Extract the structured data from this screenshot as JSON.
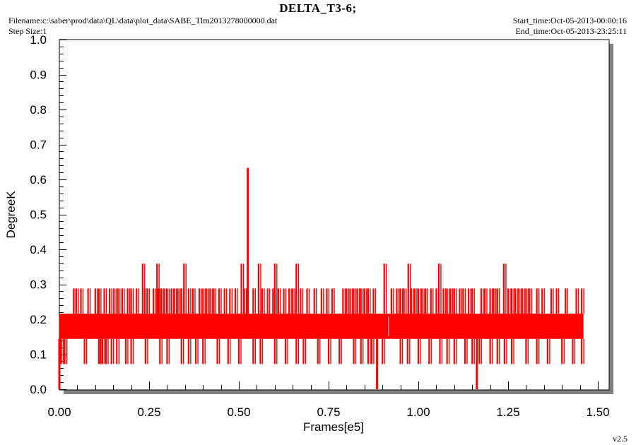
{
  "header": {
    "title": "DELTA_T3-6;",
    "filename": "Filename:c:\\saber\\prod\\data\\QL\\data\\plot_data\\SABE_Tlm2013278000000.dat",
    "step_size": "Step Size:1",
    "start_time": "Start_time:Oct-05-2013-00:00:16",
    "end_time": "End_time:Oct-05-2013-23:25:11"
  },
  "footer": {
    "version": "v2.5"
  },
  "colors": {
    "series": "#ff0000",
    "frame": "#000000",
    "shadow": "#808080",
    "background": "#ffffff"
  },
  "chart_data": {
    "type": "line",
    "title": "DELTA_T3-6;",
    "xlabel": "Frames[e5]",
    "ylabel": "DegreeK",
    "xlim": [
      0.0,
      1.5
    ],
    "ylim": [
      0.0,
      1.0
    ],
    "xticks": [
      "0.00",
      "0.25",
      "0.50",
      "0.75",
      "1.00",
      "1.25",
      "1.50"
    ],
    "yticks": [
      "0.0",
      "0.1",
      "0.2",
      "0.3",
      "0.4",
      "0.5",
      "0.6",
      "0.7",
      "0.8",
      "0.9",
      "1.0"
    ],
    "grid": false,
    "series": [
      {
        "color": "#ff0000",
        "x_range": [
          0.0,
          1.46
        ],
        "band": [
          0.144,
          0.216
        ],
        "values_observed": [
          0.072,
          0.144,
          0.216,
          0.288,
          0.359
        ],
        "max": {
          "x": 0.525,
          "y": 0.633
        },
        "min": [
          {
            "x": 0.0,
            "y": 0.0
          },
          {
            "x": 0.885,
            "y": 0.0
          },
          {
            "x": 1.163,
            "y": 0.0
          }
        ],
        "spikes_0.359": [
          0.232,
          0.272,
          0.347,
          0.507,
          0.555,
          0.6,
          0.66,
          0.905,
          0.972,
          1.057,
          1.238
        ],
        "spikes_0.288": [
          0.04,
          0.047,
          0.06,
          0.08,
          0.1,
          0.11,
          0.125,
          0.14,
          0.152,
          0.163,
          0.175,
          0.19,
          0.2,
          0.215,
          0.238,
          0.245,
          0.262,
          0.275,
          0.285,
          0.292,
          0.3,
          0.312,
          0.32,
          0.33,
          0.34,
          0.36,
          0.372,
          0.39,
          0.4,
          0.41,
          0.42,
          0.43,
          0.445,
          0.46,
          0.475,
          0.49,
          0.515,
          0.54,
          0.565,
          0.58,
          0.595,
          0.61,
          0.625,
          0.64,
          0.65,
          0.672,
          0.69,
          0.71,
          0.73,
          0.745,
          0.76,
          0.79,
          0.8,
          0.81,
          0.82,
          0.83,
          0.84,
          0.85,
          0.86,
          0.875,
          0.925,
          0.94,
          0.95,
          0.96,
          0.98,
          0.99,
          1.0,
          1.01,
          1.02,
          1.035,
          1.05,
          1.07,
          1.08,
          1.09,
          1.1,
          1.115,
          1.125,
          1.14,
          1.15,
          1.175,
          1.185,
          1.2,
          1.21,
          1.22,
          1.25,
          1.26,
          1.27,
          1.28,
          1.29,
          1.3,
          1.31,
          1.33,
          1.345,
          1.37,
          1.385,
          1.41,
          1.44,
          1.455
        ],
        "dips_0.072": [
          0.005,
          0.015,
          0.07,
          0.11,
          0.115,
          0.12,
          0.13,
          0.145,
          0.16,
          0.185,
          0.2,
          0.24,
          0.28,
          0.3,
          0.34,
          0.36,
          0.38,
          0.4,
          0.44,
          0.47,
          0.5,
          0.54,
          0.56,
          0.6,
          0.63,
          0.66,
          0.68,
          0.72,
          0.75,
          0.78,
          0.82,
          0.84,
          0.86,
          0.87,
          0.9,
          0.95,
          0.97,
          1.0,
          1.03,
          1.06,
          1.08,
          1.1,
          1.13,
          1.15,
          1.17,
          1.2,
          1.22,
          1.24,
          1.26,
          1.3,
          1.33,
          1.36,
          1.4,
          1.43,
          1.455
        ]
      }
    ]
  }
}
